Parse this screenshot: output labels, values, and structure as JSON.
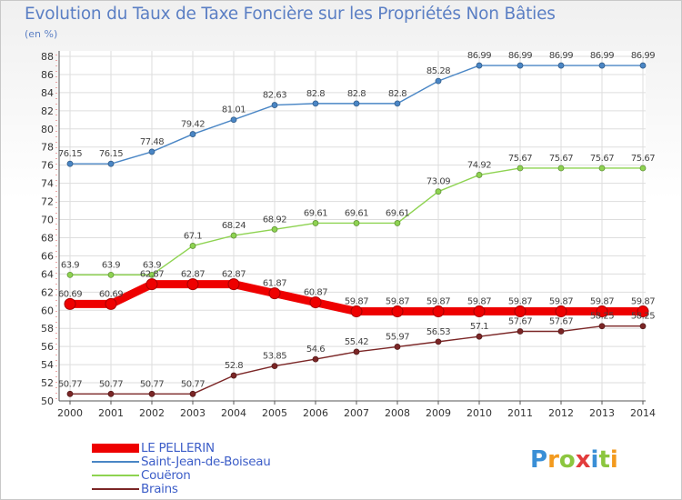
{
  "title": "Evolution du Taux de Taxe Foncière sur les Propriétés Non Bâties",
  "subtitle": "(en %)",
  "logo": {
    "letters": [
      "P",
      "r",
      "o",
      "x",
      "i",
      "t",
      "i"
    ],
    "colors": [
      "#3a8fd6",
      "#f39a1e",
      "#8cc63f",
      "#e23c3c",
      "#3a8fd6",
      "#8cc63f",
      "#f39a1e"
    ]
  },
  "chart_data": {
    "type": "line",
    "title": "Evolution du Taux de Taxe Foncière sur les Propriétés Non Bâties",
    "ylabel": "(en %)",
    "xlabel": "",
    "ylim": [
      50,
      88
    ],
    "yticks": [
      50,
      52,
      54,
      56,
      58,
      60,
      62,
      64,
      66,
      68,
      70,
      72,
      74,
      76,
      78,
      80,
      82,
      84,
      86,
      88
    ],
    "grid": true,
    "legend_position": "bottom-left",
    "x": [
      "2000",
      "2001",
      "2002",
      "2003",
      "2004",
      "2005",
      "2006",
      "2007",
      "2008",
      "2009",
      "2010",
      "2011",
      "2012",
      "2013",
      "2014"
    ],
    "series": [
      {
        "name": "Saint-Jean-de-Boiseau",
        "color": "#4a86c5",
        "labels": [
          "76.15",
          "76.15",
          "77.48",
          "79.42",
          "81.01",
          "82.63",
          "82.8",
          "82.8",
          "82.8",
          "85.28",
          "86.99",
          "86.99",
          "86.99",
          "86.99",
          "86.99"
        ],
        "values": [
          76.15,
          76.15,
          77.48,
          79.42,
          81.01,
          82.63,
          82.8,
          82.8,
          82.8,
          85.28,
          86.99,
          86.99,
          86.99,
          86.99,
          86.99
        ]
      },
      {
        "name": "Couëron",
        "color": "#8ed351",
        "labels": [
          "63.9",
          "63.9",
          "63.9",
          "67.1",
          "68.24",
          "68.92",
          "69.61",
          "69.61",
          "69.61",
          "73.09",
          "74.92",
          "75.67",
          "75.67",
          "75.67",
          "75.67"
        ],
        "values": [
          63.9,
          63.9,
          63.9,
          67.1,
          68.24,
          68.92,
          69.61,
          69.61,
          69.61,
          73.09,
          74.92,
          75.67,
          75.67,
          75.67,
          75.67
        ]
      },
      {
        "name": "LE PELLERIN",
        "color": "#ee0000",
        "labels": [
          "60.69",
          "60.69",
          "62.87",
          "62.87",
          "62.87",
          "61.87",
          "60.87",
          "59.87",
          "59.87",
          "59.87",
          "59.87",
          "59.87",
          "59.87",
          "59.87",
          "59.87"
        ],
        "values": [
          60.69,
          60.69,
          62.87,
          62.87,
          62.87,
          61.87,
          60.87,
          59.87,
          59.87,
          59.87,
          59.87,
          59.87,
          59.87,
          59.87,
          59.87
        ]
      },
      {
        "name": "Brains",
        "color": "#7b2626",
        "labels": [
          "50.77",
          "50.77",
          "50.77",
          "50.77",
          "52.8",
          "53.85",
          "54.6",
          "55.42",
          "55.97",
          "56.53",
          "57.1",
          "57.67",
          "57.67",
          "58.25",
          "58.25"
        ],
        "values": [
          50.77,
          50.77,
          50.77,
          50.77,
          52.8,
          53.85,
          54.6,
          55.42,
          55.97,
          56.53,
          57.1,
          57.67,
          57.67,
          58.25,
          58.25
        ]
      }
    ],
    "legend": [
      {
        "name": "LE PELLERIN",
        "color": "#ee0000",
        "thick": true
      },
      {
        "name": "Saint-Jean-de-Boiseau",
        "color": "#4a86c5",
        "thick": false
      },
      {
        "name": "Couëron",
        "color": "#8ed351",
        "thick": false
      },
      {
        "name": "Brains",
        "color": "#7b2626",
        "thick": false
      }
    ]
  }
}
